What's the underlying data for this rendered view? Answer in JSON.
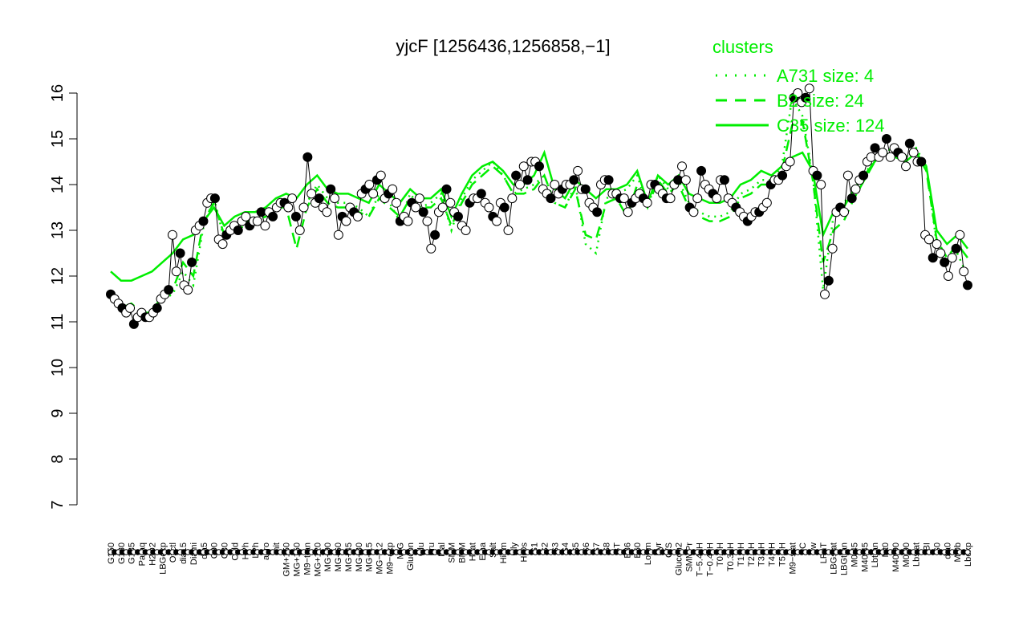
{
  "chart_data": {
    "type": "line",
    "title": "yjcF [1256436,1256858,−1]",
    "xlabel": "",
    "ylabel": "",
    "ylim": [
      7,
      16
    ],
    "yticks": [
      "7",
      "8",
      "9",
      "10",
      "11",
      "12",
      "13",
      "14",
      "15",
      "16"
    ],
    "categories": [
      "G150",
      "G180",
      "G135",
      "Paraq",
      "H2O2",
      "LBGexp",
      "Oxctl",
      "dia15",
      "Diami",
      "dia5",
      "C90",
      "C30",
      "Cold",
      "HPh",
      "LPh",
      "aero",
      "nit",
      "GM+150",
      "MG+150",
      "M9−tran",
      "MG+120",
      "MG+90",
      "MG+60",
      "MG+45",
      "MG+30",
      "MG+15",
      "MG−0.2",
      "M9−exp",
      "M/G",
      "Glucon",
      "Glu",
      "Fru",
      "Mal",
      "SMM",
      "BMM",
      "Heat",
      "Etha",
      "Salt",
      "HiTm",
      "Gly",
      "HiOs",
      "S1",
      "S2",
      "S3",
      "S4",
      "S5",
      "S6",
      "S7",
      "S8",
      "BT",
      "B36",
      "B60",
      "LoTm",
      "Pyr",
      "G/S",
      "Glucon2",
      "SMMPr",
      "T−5.40H",
      "T−0.40H",
      "T0.0H",
      "T0.30H",
      "T1.0H",
      "T2.0H",
      "T3.0H",
      "T4.0H",
      "T5.0H",
      "M9−stat",
      "BC",
      "Sw",
      "LPhT",
      "LBGstat",
      "LBGtran",
      "M0t45",
      "M40t45",
      "Lbtran",
      "Mt0",
      "M40t90",
      "M0t90",
      "Lbstat",
      "BI",
      "S0",
      "dia0",
      "Mt0b",
      "Lbexp"
    ],
    "series": [
      {
        "name": "A731 size: 4",
        "style": "dotted",
        "values": [
          11.5,
          11.3,
          11.3,
          11.1,
          11.1,
          11.5,
          11.6,
          12.1,
          11.8,
          13.1,
          13.7,
          12.8,
          13.0,
          13.1,
          13.2,
          13.3,
          13.5,
          13.6,
          13.3,
          13.6,
          14.0,
          13.7,
          13.6,
          13.6,
          13.5,
          13.3,
          13.8,
          13.6,
          13.2,
          13.8,
          13.5,
          13.6,
          13.8,
          13.0,
          13.7,
          14.1,
          14.3,
          14.5,
          14.2,
          13.8,
          13.9,
          14.0,
          14.2,
          13.6,
          13.5,
          14.0,
          12.7,
          12.5,
          13.7,
          13.8,
          13.9,
          14.2,
          13.5,
          14.2,
          13.9,
          14.1,
          13.6,
          13.4,
          13.3,
          13.3,
          13.4,
          13.8,
          13.9,
          14.1,
          14.1,
          14.4,
          15.9,
          15.5,
          14.2,
          11.7,
          13.3,
          13.6,
          13.9,
          14.2,
          14.6,
          14.8,
          14.7,
          14.6,
          14.8,
          14.4,
          12.7,
          12.3,
          12.5,
          12.0
        ]
      },
      {
        "name": "B2 size: 24",
        "style": "dashed",
        "values": [
          11.5,
          11.3,
          11.4,
          11.2,
          11.2,
          11.6,
          11.7,
          12.3,
          12.0,
          13.2,
          13.6,
          12.9,
          13.1,
          13.2,
          13.2,
          13.3,
          13.5,
          13.5,
          12.6,
          13.5,
          13.9,
          13.6,
          13.5,
          13.5,
          13.4,
          13.3,
          13.7,
          13.5,
          13.3,
          13.7,
          13.5,
          13.5,
          13.7,
          13.1,
          13.6,
          14.0,
          14.2,
          14.4,
          14.2,
          13.8,
          13.8,
          13.9,
          14.2,
          13.6,
          13.5,
          13.9,
          12.9,
          12.8,
          13.6,
          13.7,
          13.3,
          14.0,
          13.5,
          14.1,
          13.8,
          14.0,
          13.5,
          13.3,
          13.2,
          13.2,
          13.3,
          13.7,
          13.8,
          14.0,
          14.0,
          14.3,
          15.3,
          15.4,
          14.1,
          12.3,
          13.0,
          13.2,
          13.7,
          14.1,
          14.5,
          14.7,
          14.6,
          14.6,
          14.7,
          14.3,
          12.8,
          12.4,
          12.7,
          12.4
        ]
      },
      {
        "name": "C35 size: 124",
        "style": "solid",
        "values": [
          12.1,
          11.9,
          11.9,
          12.0,
          12.1,
          12.3,
          12.5,
          12.8,
          12.9,
          13.2,
          13.5,
          13.1,
          13.3,
          13.4,
          13.4,
          13.5,
          13.7,
          13.8,
          13.7,
          14.0,
          14.2,
          13.9,
          13.8,
          13.8,
          13.7,
          13.6,
          14.0,
          13.8,
          13.6,
          13.9,
          13.7,
          13.7,
          13.9,
          13.3,
          13.8,
          14.2,
          14.4,
          14.5,
          14.3,
          14.0,
          14.0,
          14.2,
          14.7,
          13.9,
          13.7,
          14.1,
          13.9,
          13.7,
          13.9,
          13.9,
          14.0,
          14.3,
          13.6,
          14.2,
          14.0,
          14.2,
          13.8,
          13.7,
          13.6,
          13.6,
          13.7,
          14.0,
          14.1,
          14.3,
          14.2,
          14.4,
          14.6,
          14.7,
          14.3,
          12.9,
          13.4,
          13.5,
          13.9,
          14.2,
          14.5,
          14.7,
          14.6,
          14.5,
          14.7,
          14.4,
          13.0,
          12.7,
          12.9,
          12.6
        ]
      }
    ],
    "points": [
      11.6,
      11.5,
      11.4,
      11.3,
      11.2,
      11.3,
      10.95,
      11.1,
      11.2,
      11.1,
      11.1,
      11.2,
      11.3,
      11.5,
      11.6,
      11.7,
      12.9,
      12.1,
      12.5,
      11.8,
      11.7,
      12.3,
      13.0,
      13.1,
      13.2,
      13.6,
      13.7,
      13.7,
      12.8,
      12.7,
      12.9,
      13.0,
      13.1,
      13.0,
      13.2,
      13.3,
      13.1,
      13.2,
      13.2,
      13.4,
      13.1,
      13.4,
      13.3,
      13.5,
      13.6,
      13.6,
      13.5,
      13.7,
      13.3,
      13.0,
      13.5,
      14.6,
      13.8,
      13.6,
      13.7,
      13.5,
      13.4,
      13.9,
      13.7,
      12.9,
      13.3,
      13.2,
      13.5,
      13.4,
      13.3,
      13.8,
      13.9,
      14.0,
      13.8,
      14.1,
      14.2,
      13.7,
      13.8,
      13.9,
      13.6,
      13.2,
      13.3,
      13.2,
      13.6,
      13.5,
      13.7,
      13.4,
      13.2,
      12.6,
      12.9,
      13.4,
      13.5,
      13.9,
      13.6,
      13.4,
      13.3,
      13.1,
      13.0,
      13.6,
      13.7,
      13.7,
      13.8,
      13.6,
      13.5,
      13.3,
      13.2,
      13.6,
      13.5,
      13.0,
      13.7,
      14.2,
      14.0,
      14.4,
      14.1,
      14.5,
      14.5,
      14.4,
      13.9,
      13.8,
      13.7,
      14.0,
      13.8,
      13.9,
      14.0,
      14.0,
      14.1,
      14.3,
      13.9,
      13.9,
      13.6,
      13.5,
      13.4,
      14.0,
      14.1,
      14.1,
      13.8,
      13.8,
      13.7,
      13.7,
      13.4,
      13.6,
      13.7,
      13.8,
      13.7,
      13.6,
      14.0,
      14.0,
      13.9,
      13.8,
      13.7,
      13.7,
      14.0,
      14.1,
      14.4,
      14.1,
      13.5,
      13.4,
      13.7,
      14.3,
      14.0,
      13.9,
      13.8,
      13.7,
      14.1,
      14.1,
      13.7,
      13.6,
      13.5,
      13.4,
      13.3,
      13.2,
      13.3,
      13.4,
      13.4,
      13.5,
      13.6,
      14.0,
      14.1,
      14.1,
      14.2,
      14.4,
      14.5,
      15.9,
      16.0,
      15.8,
      15.9,
      16.1,
      14.3,
      14.2,
      14.0,
      11.6,
      11.9,
      12.6,
      13.4,
      13.5,
      13.4,
      14.2,
      13.7,
      13.9,
      14.1,
      14.2,
      14.5,
      14.6,
      14.8,
      14.6,
      14.7,
      15.0,
      14.6,
      14.8,
      14.7,
      14.6,
      14.4,
      14.9,
      14.7,
      14.5,
      14.5,
      12.9,
      12.8,
      12.4,
      12.7,
      12.5,
      12.3,
      12.0,
      12.4,
      12.6,
      12.9,
      12.1,
      11.8
    ]
  },
  "legend": {
    "title": "clusters",
    "entries": [
      "A731 size: 4",
      "B2 size: 24",
      "C35 size: 124"
    ],
    "placement": "top-right",
    "color": "#00ee00"
  },
  "colors": {
    "line": "#00ee00",
    "point_open": "#ffffff",
    "point_filled": "#000000",
    "axis": "#000000"
  }
}
